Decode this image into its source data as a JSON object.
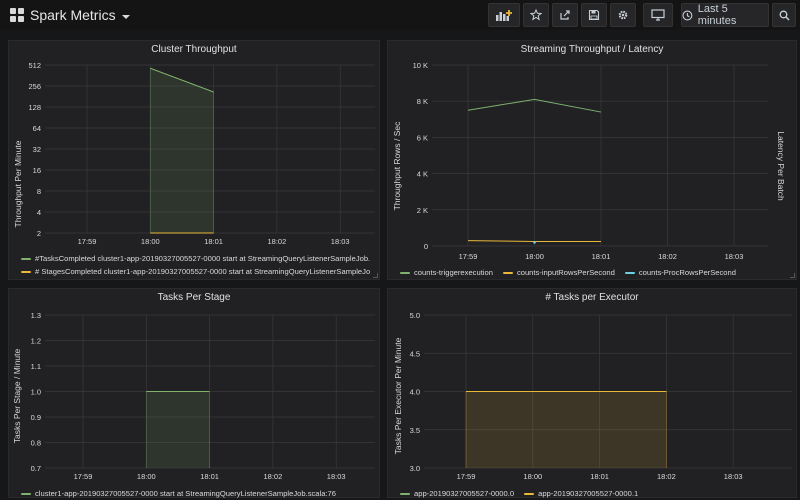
{
  "app": {
    "dashboard_title": "Spark Metrics",
    "time_range_label": "Last 5 minutes"
  },
  "toolbar": {
    "icons": [
      "add-panel-icon",
      "star-icon",
      "share-icon",
      "save-icon",
      "gear-icon",
      "monitor-icon",
      "clock-icon",
      "search-icon"
    ]
  },
  "colors": {
    "green": "#7eb26d",
    "orange": "#eab839",
    "blue": "#6ed0e0",
    "grid": "#3a3a3d",
    "text": "#d8d9da"
  },
  "panels": [
    {
      "title": "Cluster Throughput",
      "ylabel": "Throughput Per Minute",
      "chart_data": {
        "type": "line",
        "x_ticks": [
          "17:59",
          "18:00",
          "18:01",
          "18:02",
          "18:03"
        ],
        "y_scale": "log2",
        "y_ticks": [
          "512",
          "256",
          "128",
          "64",
          "32",
          "16",
          "8",
          "4",
          "2"
        ],
        "series": [
          {
            "name": "#TasksCompleted cluster1-app-20190327005527-0000 start at StreamingQueryListenerSampleJob.",
            "color": "#7eb26d",
            "fill": true,
            "points": [
              [
                "18:00",
                460
              ],
              [
                "18:01",
                210
              ]
            ]
          },
          {
            "name": "# StagesCompleted cluster1-app-20190327005527-0000 start at StreamingQueryListenerSampleJo",
            "color": "#eab839",
            "fill": false,
            "points": [
              [
                "18:00",
                2
              ],
              [
                "18:01",
                2
              ]
            ]
          }
        ]
      }
    },
    {
      "title": "Streaming Throughput / Latency",
      "ylabel": "Throughput Rows / Sec",
      "ylabel_right": "Latency Per Batch",
      "chart_data": {
        "type": "line",
        "x_ticks": [
          "17:59",
          "18:00",
          "18:01",
          "18:02",
          "18:03"
        ],
        "y_ticks": [
          "10 K",
          "8 K",
          "6 K",
          "4 K",
          "2 K",
          "0"
        ],
        "ylim": [
          0,
          10000
        ],
        "series": [
          {
            "name": "counts-triggerexecution",
            "color": "#7eb26d",
            "points": [
              [
                "17:59",
                7500
              ],
              [
                "18:00",
                8100
              ],
              [
                "18:01",
                7400
              ]
            ]
          },
          {
            "name": "counts-inputRowsPerSecond",
            "color": "#eab839",
            "points": [
              [
                "17:59",
                300
              ],
              [
                "18:00",
                250
              ],
              [
                "18:01",
                250
              ]
            ]
          },
          {
            "name": "counts-ProcRowsPerSecond",
            "color": "#6ed0e0",
            "points": [
              [
                "18:00",
                200
              ]
            ]
          }
        ]
      }
    },
    {
      "title": "Tasks Per Stage",
      "ylabel": "Tasks Per Stage / Minute",
      "chart_data": {
        "type": "bar",
        "x_ticks": [
          "17:59",
          "18:00",
          "18:01",
          "18:02",
          "18:03"
        ],
        "y_ticks": [
          "1.3",
          "1.2",
          "1.1",
          "1.0",
          "0.9",
          "0.8",
          "0.7"
        ],
        "ylim": [
          0.7,
          1.3
        ],
        "series": [
          {
            "name": "cluster1-app-20190327005527-0000 start at StreamingQueryListenerSampleJob.scala:76",
            "color": "#7eb26d",
            "fill": true,
            "points": [
              [
                "18:00",
                1.0
              ],
              [
                "18:01",
                1.0
              ]
            ]
          }
        ]
      }
    },
    {
      "title": "# Tasks per Executor",
      "ylabel": "Tasks Per Executor Per Minute",
      "chart_data": {
        "type": "area",
        "x_ticks": [
          "17:59",
          "18:00",
          "18:01",
          "18:02",
          "18:03"
        ],
        "y_ticks": [
          "5.0",
          "4.5",
          "4.0",
          "3.5",
          "3.0"
        ],
        "ylim": [
          3.0,
          5.0
        ],
        "series": [
          {
            "name": "app-20190327005527-0000.0",
            "color": "#7eb26d",
            "points": [
              [
                "17:59",
                4.0
              ],
              [
                "18:02",
                4.0
              ]
            ]
          },
          {
            "name": "app-20190327005527-0000.1",
            "color": "#eab839",
            "fill": true,
            "points": [
              [
                "17:59",
                4.0
              ],
              [
                "18:02",
                4.0
              ]
            ]
          }
        ]
      }
    }
  ]
}
